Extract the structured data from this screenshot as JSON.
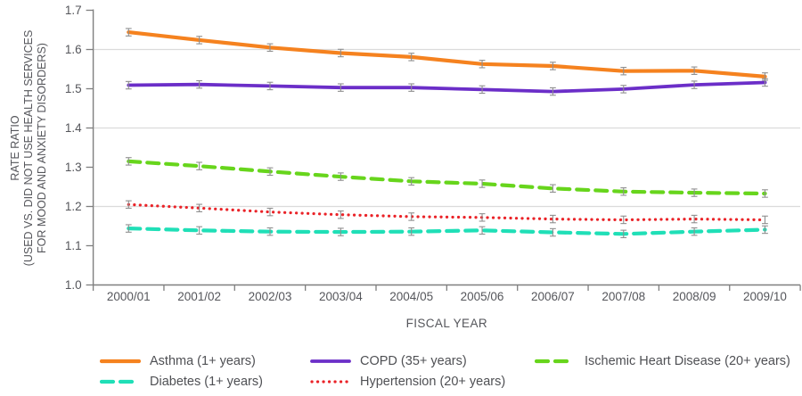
{
  "figure": {
    "background": "#ffffff",
    "text_color": "#55565b",
    "axis_color": "#7f7f7f",
    "grid_color": "#dbdbdb",
    "error_bar_color": "#8f8f8f"
  },
  "chart_data": {
    "type": "line",
    "title": "",
    "xlabel": "FISCAL YEAR",
    "ylabel_lines": [
      "RATE RATIO",
      "(USED VS. DID NOT USE HEALTH SERVICES",
      "FOR MOOD AND ANXIETY DISORDERS)"
    ],
    "categories": [
      "2000/01",
      "2001/02",
      "2002/03",
      "2003/04",
      "2004/05",
      "2005/06",
      "2006/07",
      "2007/08",
      "2008/09",
      "2009/10"
    ],
    "ylim": [
      1.0,
      1.7
    ],
    "ytick_step": 0.1,
    "ytick_labels": [
      "1.0",
      "1.1",
      "1.2",
      "1.3",
      "1.4",
      "1.5",
      "1.6",
      "1.7"
    ],
    "gridlines_at": [
      1.2,
      1.4,
      1.6
    ],
    "grid": true,
    "legend_position": "bottom",
    "error_bar_halfheight": 0.0095,
    "series": [
      {
        "name": "Asthma (1+ years)",
        "color": "#f5821f",
        "style": "solid",
        "width": 4.2,
        "values": [
          1.644,
          1.624,
          1.605,
          1.591,
          1.581,
          1.563,
          1.558,
          1.545,
          1.546,
          1.531
        ]
      },
      {
        "name": "COPD (35+ years)",
        "color": "#6b2ec8",
        "style": "solid",
        "width": 3.8,
        "values": [
          1.509,
          1.511,
          1.507,
          1.503,
          1.503,
          1.498,
          1.493,
          1.499,
          1.51,
          1.516
        ]
      },
      {
        "name": "Ischemic Heart Disease (20+ years)",
        "color": "#67d51c",
        "style": "dashed",
        "width": 4.2,
        "values": [
          1.315,
          1.303,
          1.289,
          1.276,
          1.264,
          1.258,
          1.246,
          1.238,
          1.235,
          1.233
        ]
      },
      {
        "name": "Diabetes (1+ years)",
        "color": "#20dfb7",
        "style": "dashed",
        "width": 4.2,
        "values": [
          1.144,
          1.139,
          1.136,
          1.135,
          1.136,
          1.139,
          1.134,
          1.13,
          1.136,
          1.141
        ]
      },
      {
        "name": "Hypertension (20+ years)",
        "color": "#ea2328",
        "style": "dotted",
        "width": 3.2,
        "values": [
          1.205,
          1.196,
          1.186,
          1.179,
          1.174,
          1.172,
          1.168,
          1.166,
          1.168,
          1.166
        ]
      }
    ],
    "legend_rows": [
      [
        0,
        1,
        2
      ],
      [
        3,
        4
      ]
    ]
  }
}
